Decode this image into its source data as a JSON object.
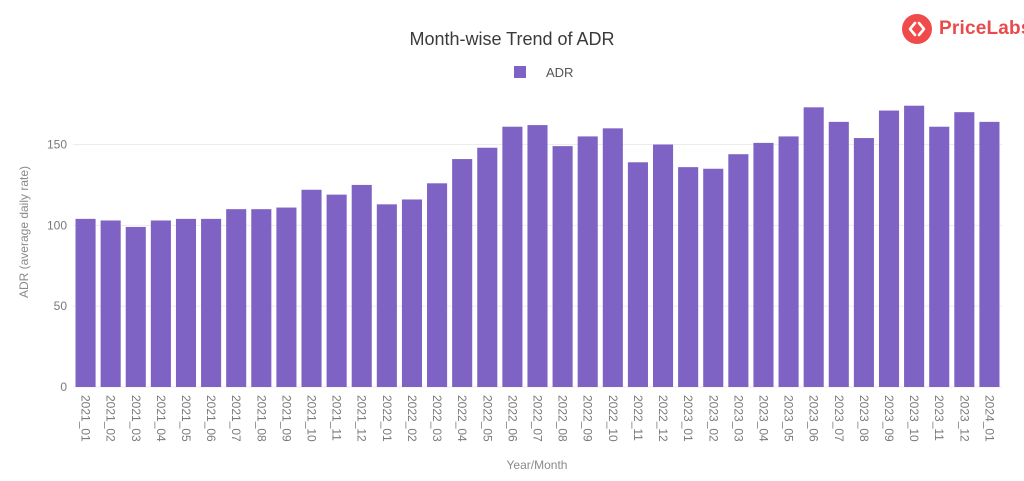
{
  "brand": {
    "name": "PriceLabs",
    "accent": "#f04a4a",
    "icon": "pricelabs-logo-icon"
  },
  "chart_data": {
    "type": "bar",
    "title": "Month-wise Trend of ADR",
    "xlabel": "Year/Month",
    "ylabel": "ADR (average daily rate)",
    "ylim": [
      0,
      180
    ],
    "yticks": [
      0,
      50,
      100,
      150
    ],
    "grid": true,
    "legend": "top-center",
    "categories": [
      "2021_01",
      "2021_02",
      "2021_03",
      "2021_04",
      "2021_05",
      "2021_06",
      "2021_07",
      "2021_08",
      "2021_09",
      "2021_10",
      "2021_11",
      "2021_12",
      "2022_01",
      "2022_02",
      "2022_03",
      "2022_04",
      "2022_05",
      "2022_06",
      "2022_07",
      "2022_08",
      "2022_09",
      "2022_10",
      "2022_11",
      "2022_12",
      "2023_01",
      "2023_02",
      "2023_03",
      "2023_04",
      "2023_05",
      "2023_06",
      "2023_07",
      "2023_08",
      "2023_09",
      "2023_10",
      "2023_11",
      "2023_12",
      "2024_01"
    ],
    "series": [
      {
        "name": "ADR",
        "color": "#7f63c4",
        "values": [
          104,
          103,
          99,
          103,
          104,
          104,
          110,
          110,
          111,
          122,
          119,
          125,
          113,
          116,
          126,
          141,
          148,
          161,
          162,
          149,
          155,
          160,
          139,
          150,
          136,
          135,
          144,
          151,
          155,
          173,
          164,
          154,
          171,
          174,
          161,
          170,
          164
        ]
      }
    ]
  }
}
